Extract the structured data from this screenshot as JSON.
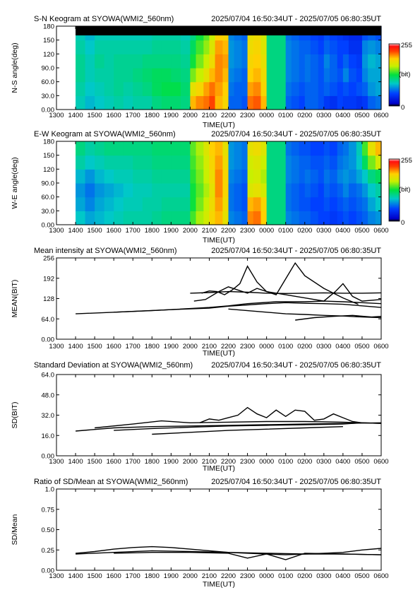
{
  "time_range": "2025/07/04 16:50:34UT - 2025/07/05 06:80:35UT",
  "x_axis": {
    "label": "TIME(UT)",
    "ticks": [
      "1300",
      "1400",
      "1500",
      "1600",
      "1700",
      "1800",
      "1900",
      "2000",
      "2100",
      "2200",
      "2300",
      "0000",
      "0100",
      "0200",
      "0300",
      "0400",
      "0500",
      "0600"
    ]
  },
  "colorbar": {
    "max_label": "255",
    "unit_label": "(bit)",
    "min_label": "0"
  },
  "panels": [
    {
      "id": "sn",
      "title": "S-N Keogram at SYOWA(WMI2_560nm)",
      "ylabel": "N-S angle(deg)",
      "yticks": [
        "0.00",
        "30.0",
        "60.0",
        "90.0",
        "120",
        "150",
        "180"
      ]
    },
    {
      "id": "ew",
      "title": "E-W Keogram at SYOWA(WMI2_560nm)",
      "ylabel": "W-E angle(deg)",
      "yticks": [
        "0.00",
        "30.0",
        "60.0",
        "90.0",
        "120",
        "150",
        "180"
      ]
    },
    {
      "id": "mean",
      "title": "Mean intensity at SYOWA(WMI2_560nm)",
      "ylabel": "MEAN(BIT)",
      "yticks": [
        "0.00",
        "64.0",
        "128",
        "192",
        "256"
      ]
    },
    {
      "id": "sd",
      "title": "Standard Deviation at SYOWA(WMI2_560nm)",
      "ylabel": "SD(BIT)",
      "yticks": [
        "0.00",
        "16.0",
        "32.0",
        "48.0",
        "64.0"
      ]
    },
    {
      "id": "ratio",
      "title": "Ratio of SD/Mean at SYOWA(WMI2_560nm)",
      "ylabel": "SD/Mean",
      "yticks": [
        "0.00",
        "0.25",
        "0.50",
        "0.75",
        "1.0"
      ]
    }
  ],
  "chart_data": [
    {
      "type": "heatmap",
      "title": "S-N Keogram at SYOWA(WMI2_560nm)",
      "xlabel": "TIME(UT)",
      "ylabel": "N-S angle(deg)",
      "xlim": [
        13,
        30
      ],
      "ylim": [
        0,
        180
      ],
      "zlim": [
        0,
        255
      ],
      "colormap": "rainbow",
      "data_start_hour": 14.0,
      "top_black_band_deg": 160,
      "x": [
        14.0,
        14.5,
        15.0,
        15.5,
        16.0,
        16.5,
        17.0,
        17.5,
        18.0,
        18.5,
        19.0,
        19.5,
        20.0,
        20.3,
        20.7,
        21.0,
        21.3,
        21.7,
        22.0,
        22.3,
        22.7,
        23.0,
        23.3,
        23.7,
        24.0,
        24.3,
        24.7,
        25.0,
        25.3,
        25.7,
        26.0,
        26.3,
        26.7,
        27.0,
        27.3,
        27.7,
        28.0,
        28.3,
        28.7,
        29.0,
        29.3,
        29.7
      ],
      "y": [
        0,
        30,
        60,
        90,
        120,
        150
      ],
      "z": [
        [
          95,
          85,
          90,
          95,
          100,
          95,
          100,
          100,
          110,
          115,
          115,
          110,
          200,
          210,
          215,
          225,
          200,
          190,
          60,
          60,
          55,
          215,
          220,
          200,
          110,
          110,
          110,
          60,
          55,
          50,
          60,
          60,
          55,
          45,
          40,
          50,
          45,
          45,
          40,
          45,
          60,
          65
        ],
        [
          100,
          90,
          95,
          100,
          105,
          100,
          105,
          110,
          120,
          125,
          125,
          115,
          180,
          190,
          205,
          215,
          205,
          195,
          65,
          60,
          60,
          205,
          210,
          190,
          110,
          110,
          110,
          65,
          60,
          55,
          60,
          60,
          55,
          60,
          55,
          50,
          55,
          50,
          55,
          60,
          75,
          80
        ],
        [
          105,
          95,
          100,
          100,
          105,
          105,
          110,
          115,
          120,
          120,
          115,
          110,
          150,
          165,
          180,
          200,
          210,
          200,
          70,
          65,
          60,
          195,
          200,
          185,
          110,
          110,
          110,
          70,
          65,
          60,
          65,
          60,
          55,
          65,
          60,
          55,
          70,
          55,
          50,
          70,
          80,
          80
        ],
        [
          105,
          95,
          105,
          100,
          105,
          105,
          105,
          110,
          110,
          110,
          110,
          105,
          130,
          150,
          165,
          185,
          210,
          205,
          75,
          70,
          65,
          190,
          195,
          180,
          110,
          110,
          110,
          70,
          65,
          60,
          65,
          60,
          55,
          70,
          60,
          50,
          60,
          50,
          45,
          75,
          85,
          80
        ],
        [
          100,
          90,
          100,
          100,
          100,
          100,
          100,
          100,
          105,
          105,
          105,
          100,
          120,
          140,
          155,
          175,
          205,
          200,
          75,
          70,
          65,
          185,
          190,
          175,
          110,
          110,
          110,
          70,
          65,
          60,
          60,
          55,
          50,
          60,
          55,
          50,
          50,
          40,
          40,
          70,
          75,
          70
        ],
        [
          95,
          85,
          95,
          95,
          95,
          95,
          95,
          95,
          100,
          100,
          100,
          95,
          110,
          130,
          145,
          165,
          195,
          190,
          70,
          65,
          60,
          180,
          185,
          170,
          110,
          110,
          110,
          65,
          60,
          55,
          55,
          50,
          45,
          55,
          50,
          45,
          40,
          35,
          35,
          55,
          60,
          55
        ]
      ]
    },
    {
      "type": "heatmap",
      "title": "E-W Keogram at SYOWA(WMI2_560nm)",
      "xlabel": "TIME(UT)",
      "ylabel": "W-E angle(deg)",
      "xlim": [
        13,
        30
      ],
      "ylim": [
        0,
        180
      ],
      "zlim": [
        0,
        255
      ],
      "colormap": "rainbow",
      "data_start_hour": 14.0,
      "x": [
        14.0,
        14.5,
        15.0,
        15.5,
        16.0,
        16.5,
        17.0,
        17.5,
        18.0,
        18.5,
        19.0,
        19.5,
        20.0,
        20.3,
        20.7,
        21.0,
        21.3,
        21.7,
        22.0,
        22.3,
        22.7,
        23.0,
        23.3,
        23.7,
        24.0,
        24.3,
        24.7,
        25.0,
        25.3,
        25.7,
        26.0,
        26.3,
        26.7,
        27.0,
        27.3,
        27.7,
        28.0,
        28.3,
        28.7,
        29.0,
        29.3,
        29.7
      ],
      "y": [
        0,
        30,
        60,
        90,
        120,
        150
      ],
      "z": [
        [
          90,
          80,
          85,
          90,
          95,
          100,
          100,
          100,
          105,
          110,
          110,
          110,
          140,
          160,
          170,
          190,
          200,
          180,
          70,
          65,
          60,
          210,
          215,
          195,
          110,
          110,
          110,
          70,
          65,
          60,
          60,
          55,
          50,
          50,
          45,
          50,
          55,
          50,
          55,
          60,
          70,
          75
        ],
        [
          80,
          70,
          80,
          85,
          90,
          95,
          95,
          100,
          100,
          105,
          105,
          105,
          130,
          150,
          165,
          185,
          205,
          185,
          65,
          60,
          55,
          200,
          205,
          190,
          110,
          110,
          110,
          65,
          60,
          55,
          55,
          50,
          50,
          55,
          50,
          55,
          60,
          55,
          60,
          65,
          80,
          90
        ],
        [
          75,
          65,
          75,
          80,
          85,
          90,
          95,
          95,
          100,
          100,
          100,
          100,
          130,
          145,
          160,
          180,
          210,
          190,
          65,
          60,
          55,
          175,
          180,
          170,
          110,
          110,
          110,
          65,
          60,
          55,
          60,
          55,
          50,
          60,
          55,
          60,
          70,
          60,
          65,
          75,
          90,
          100
        ],
        [
          85,
          75,
          85,
          90,
          95,
          95,
          100,
          100,
          105,
          105,
          105,
          105,
          135,
          150,
          165,
          185,
          210,
          190,
          70,
          65,
          60,
          165,
          170,
          160,
          110,
          110,
          110,
          70,
          65,
          60,
          65,
          60,
          55,
          65,
          60,
          70,
          75,
          70,
          80,
          90,
          110,
          120
        ],
        [
          100,
          90,
          95,
          100,
          100,
          100,
          105,
          105,
          110,
          110,
          110,
          110,
          140,
          155,
          170,
          190,
          205,
          185,
          75,
          70,
          65,
          170,
          175,
          165,
          110,
          110,
          110,
          70,
          65,
          60,
          60,
          55,
          55,
          60,
          55,
          65,
          70,
          75,
          90,
          120,
          150,
          170
        ],
        [
          110,
          100,
          105,
          110,
          110,
          110,
          110,
          110,
          115,
          115,
          115,
          115,
          145,
          160,
          175,
          195,
          200,
          180,
          75,
          70,
          65,
          180,
          185,
          175,
          110,
          110,
          110,
          65,
          60,
          55,
          55,
          50,
          50,
          55,
          50,
          60,
          65,
          75,
          95,
          140,
          180,
          200
        ]
      ]
    },
    {
      "type": "line",
      "title": "Mean intensity at SYOWA(WMI2_560nm)",
      "xlabel": "TIME(UT)",
      "ylabel": "MEAN(BIT)",
      "xlim": [
        13,
        30
      ],
      "ylim": [
        0,
        256
      ],
      "series": [
        {
          "x": [
            14.0,
            18.0,
            21.0,
            22.0,
            23.0,
            24.5,
            26.0,
            27.0,
            28.0,
            29.0,
            30.0
          ],
          "y": [
            80,
            90,
            100,
            105,
            112,
            118,
            118,
            120,
            118,
            115,
            112
          ]
        },
        {
          "x": [
            16.0,
            19.0,
            21.0,
            22.0,
            23.0,
            24.0,
            25.0,
            26.0,
            27.0,
            28.0,
            29.0,
            30.0
          ],
          "y": [
            85,
            93,
            98,
            104,
            108,
            112,
            115,
            113,
            112,
            110,
            105,
            100
          ]
        },
        {
          "x": [
            20.6,
            21.0,
            21.4,
            21.8,
            22.2,
            22.6,
            23.0,
            23.5,
            24.0,
            24.5,
            25.0,
            25.5,
            26.0,
            27.0,
            28.0,
            28.8
          ],
          "y": [
            145,
            152,
            150,
            140,
            155,
            175,
            230,
            180,
            150,
            140,
            190,
            240,
            200,
            160,
            130,
            110
          ]
        },
        {
          "x": [
            20.0,
            21.0,
            22.0,
            23.0,
            24.0,
            25.0,
            26.0,
            27.0,
            28.0,
            29.0,
            30.0
          ],
          "y": [
            145,
            147,
            150,
            148,
            145,
            144,
            145,
            146,
            145,
            145,
            146
          ]
        },
        {
          "x": [
            20.2,
            20.8,
            21.5,
            22.0,
            22.5,
            23.0,
            23.5,
            24.0,
            25.0,
            26.0,
            27.0,
            27.6,
            28.0,
            28.5,
            29.0,
            30.0
          ],
          "y": [
            120,
            125,
            150,
            165,
            155,
            145,
            160,
            150,
            140,
            130,
            120,
            150,
            175,
            135,
            120,
            125
          ]
        },
        {
          "x": [
            22.0,
            23.0,
            24.0,
            25.0,
            26.0,
            27.0,
            28.0,
            29.0,
            30.0
          ],
          "y": [
            95,
            90,
            85,
            80,
            78,
            75,
            73,
            70,
            68
          ]
        },
        {
          "x": [
            25.5,
            26.5,
            27.5,
            28.5,
            29.5,
            30.0
          ],
          "y": [
            60,
            68,
            72,
            75,
            70,
            72
          ]
        }
      ]
    },
    {
      "type": "line",
      "title": "Standard Deviation at SYOWA(WMI2_560nm)",
      "xlabel": "TIME(UT)",
      "ylabel": "SD(BIT)",
      "xlim": [
        13,
        30
      ],
      "ylim": [
        0,
        64
      ],
      "series": [
        {
          "x": [
            14.0,
            16.0,
            18.0,
            20.0,
            22.0,
            24.0,
            26.0,
            28.0,
            30.0
          ],
          "y": [
            19.5,
            22,
            23,
            23.5,
            24,
            24.5,
            25,
            25.5,
            26
          ]
        },
        {
          "x": [
            15.0,
            17.0,
            18.5,
            20.0,
            22.0,
            24.0,
            26.0,
            28.0,
            30.0
          ],
          "y": [
            22,
            25,
            27.5,
            26,
            26.5,
            27,
            27,
            26.5,
            25.5
          ]
        },
        {
          "x": [
            16.0,
            18.0,
            20.0,
            22.0,
            24.0,
            26.0,
            28.0,
            29.0
          ],
          "y": [
            20,
            21.5,
            22.5,
            23.5,
            24,
            24.5,
            25,
            26
          ]
        },
        {
          "x": [
            20.5,
            21.0,
            21.5,
            22.0,
            22.5,
            23.0,
            23.5,
            24.0,
            24.5,
            25.0,
            25.5,
            26.0,
            26.5,
            27.0,
            27.5,
            28.0,
            28.5,
            29.0,
            30.0
          ],
          "y": [
            26,
            29,
            28,
            30,
            32,
            38,
            33,
            30,
            36,
            31,
            36,
            35,
            28,
            29,
            33,
            30,
            27,
            26,
            25.5
          ]
        },
        {
          "x": [
            18.0,
            20.0,
            22.0,
            24.0,
            26.0,
            28.0
          ],
          "y": [
            17,
            18.5,
            20,
            21,
            22,
            23
          ]
        }
      ]
    },
    {
      "type": "line",
      "title": "Ratio of SD/Mean at SYOWA(WMI2_560nm)",
      "xlabel": "TIME(UT)",
      "ylabel": "SD/Mean",
      "xlim": [
        13,
        30
      ],
      "ylim": [
        0,
        1.0
      ],
      "series": [
        {
          "x": [
            14.0,
            15.0,
            16.0,
            17.0,
            18.0,
            19.0,
            20.0,
            21.0,
            22.0,
            23.0,
            24.0,
            25.0,
            26.0,
            27.0,
            28.0,
            29.0,
            30.0
          ],
          "y": [
            0.21,
            0.23,
            0.26,
            0.28,
            0.29,
            0.28,
            0.26,
            0.24,
            0.22,
            0.21,
            0.2,
            0.19,
            0.2,
            0.21,
            0.22,
            0.25,
            0.27
          ]
        },
        {
          "x": [
            14.0,
            16.0,
            18.0,
            20.0,
            22.0,
            24.0,
            26.0,
            28.0,
            30.0
          ],
          "y": [
            0.2,
            0.22,
            0.24,
            0.23,
            0.22,
            0.21,
            0.2,
            0.2,
            0.19
          ]
        },
        {
          "x": [
            16.0,
            18.0,
            20.0,
            22.0,
            23.0,
            24.0,
            25.0,
            26.0,
            28.0,
            30.0
          ],
          "y": [
            0.21,
            0.22,
            0.22,
            0.21,
            0.15,
            0.2,
            0.13,
            0.21,
            0.2,
            0.19
          ]
        }
      ]
    }
  ]
}
